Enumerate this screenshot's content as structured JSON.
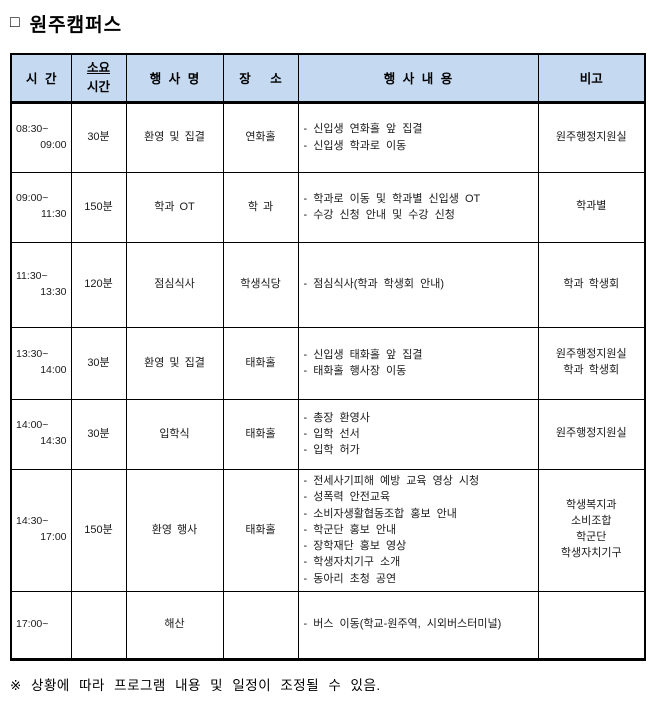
{
  "title_bullet": "□",
  "title": "원주캠퍼스",
  "footnote": "※ 상황에 따라 프로그램 내용 및 일정이 조정될 수 있음.",
  "colors": {
    "header_bg": "#C5D9F1",
    "border": "#000000",
    "text": "#1a1a1a"
  },
  "table": {
    "headers": {
      "time": "시 간",
      "duration_line1": "소요",
      "duration_line2": "시간",
      "event": "행 사 명",
      "place": "장 소",
      "details": "행 사 내 용",
      "note": "비고"
    },
    "rows": [
      {
        "time_start": "08:30~",
        "time_end": "09:00",
        "duration": "30분",
        "event": "환영 및 집결",
        "place": "연화홀",
        "details": [
          "- 신입생 연화홀 앞 집결",
          "- 신입생 학과로 이동"
        ],
        "note": [
          "원주행정지원실"
        ]
      },
      {
        "time_start": "09:00~",
        "time_end": "11:30",
        "duration": "150분",
        "event": "학과 OT",
        "place": "학 과",
        "details": [
          "- 학과로 이동 및 학과별 신입생 OT",
          "- 수강 신청 안내 및 수강 신청"
        ],
        "note": [
          "학과별"
        ]
      },
      {
        "time_start": "11:30~",
        "time_end": "13:30",
        "duration": "120분",
        "event": "점심식사",
        "place": "학생식당",
        "details": [
          "- 점심식사(학과 학생회 안내)"
        ],
        "note": [
          "학과 학생회"
        ]
      },
      {
        "time_start": "13:30~",
        "time_end": "14:00",
        "duration": "30분",
        "event": "환영 및 집결",
        "place": "태화홀",
        "details": [
          "- 신입생 태화홀 앞 집결",
          "- 태화홀 행사장 이동"
        ],
        "note": [
          "원주행정지원실",
          "학과 학생회"
        ]
      },
      {
        "time_start": "14:00~",
        "time_end": "14:30",
        "duration": "30분",
        "event": "입학식",
        "place": "태화홀",
        "details": [
          "- 총장 환영사",
          "- 입학 선서",
          "- 입학 허가"
        ],
        "note": [
          "원주행정지원실"
        ]
      },
      {
        "time_start": "14:30~",
        "time_end": "17:00",
        "duration": "150분",
        "event": "환영 행사",
        "place": "태화홀",
        "details": [
          "- 전세사기피해 예방 교육 영상 시청",
          "- 성폭력 안전교육",
          "- 소비자생활협동조합 홍보 안내",
          "- 학군단 홍보 안내",
          "- 장학재단 홍보 영상",
          "- 학생자치기구 소개",
          "- 동아리 초청 공연"
        ],
        "note": [
          "학생복지과",
          "소비조합",
          "학군단",
          "학생자치기구"
        ]
      },
      {
        "time_start": "17:00~",
        "time_end": "",
        "duration": "",
        "event": "해산",
        "place": "",
        "details": [
          "- 버스 이동(학교-원주역, 시외버스터미널)"
        ],
        "note": []
      }
    ]
  }
}
